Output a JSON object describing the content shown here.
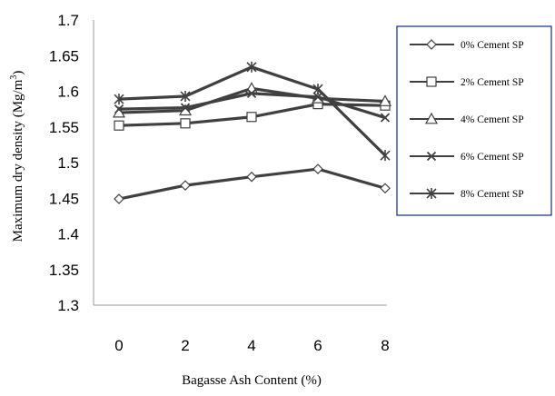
{
  "chart_data": {
    "type": "line",
    "x": [
      0,
      2,
      4,
      6,
      8
    ],
    "xlabel": "Bagasse Ash Content (%)",
    "ylabel_main": "Maximum dry density (Mg/m",
    "ylabel_sup": "3",
    "ylabel_close": ")",
    "ylim": [
      1.3,
      1.7
    ],
    "ytick_step": 0.05,
    "yticks": [
      "1.7",
      "1.65",
      "1.6",
      "1.55",
      "1.5",
      "1.45",
      "1.4",
      "1.35",
      "1.3"
    ],
    "xticks": [
      "0",
      "2",
      "4",
      "6",
      "8"
    ],
    "grid": false,
    "legend_position": "right",
    "legend_border_color": "#1f3c88",
    "line_color": "#404040",
    "series": [
      {
        "name": "0% Cement SP",
        "marker": "diamond",
        "values": [
          1.449,
          1.468,
          1.48,
          1.491,
          1.464
        ]
      },
      {
        "name": "2% Cement SP",
        "marker": "square",
        "values": [
          1.552,
          1.555,
          1.564,
          1.582,
          1.58
        ]
      },
      {
        "name": "4% Cement SP",
        "marker": "triangle",
        "values": [
          1.57,
          1.573,
          1.604,
          1.59,
          1.586
        ]
      },
      {
        "name": "6% Cement SP",
        "marker": "x",
        "values": [
          1.575,
          1.577,
          1.597,
          1.592,
          1.563
        ]
      },
      {
        "name": "8% Cement SP",
        "marker": "star",
        "values": [
          1.589,
          1.593,
          1.634,
          1.603,
          1.51
        ]
      }
    ]
  }
}
